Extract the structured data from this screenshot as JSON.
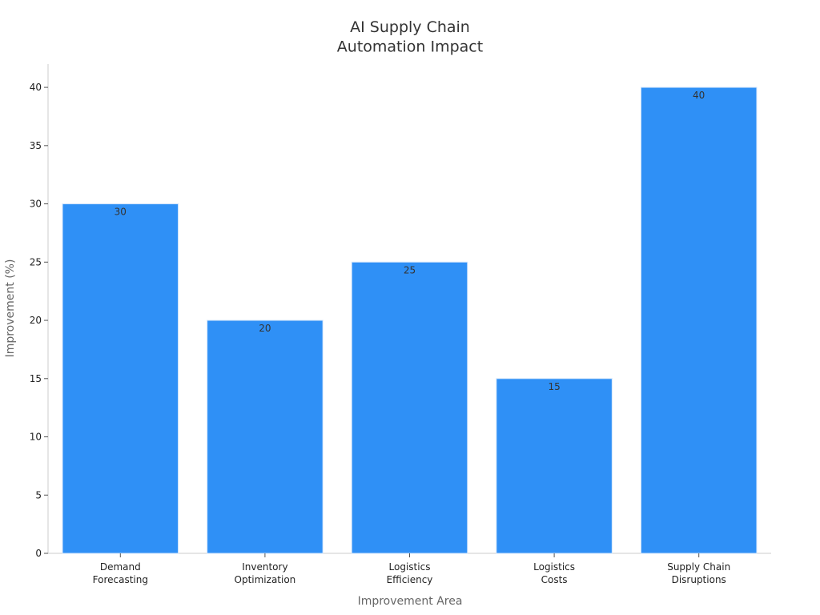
{
  "chart_data": {
    "type": "bar",
    "title": "AI Supply Chain\nAutomation Impact",
    "x_label": "Improvement Area",
    "y_label": "Improvement (%)",
    "categories": [
      "Demand\nForecasting",
      "Inventory\nOptimization",
      "Logistics\nEfficiency",
      "Logistics\nCosts",
      "Supply Chain\nDisruptions"
    ],
    "values": [
      30,
      20,
      25,
      15,
      40
    ],
    "color": "#2f90f6",
    "ylim": [
      0,
      42
    ],
    "yticks": [
      0,
      5,
      10,
      15,
      20,
      25,
      30,
      35,
      40
    ],
    "grid": false
  }
}
